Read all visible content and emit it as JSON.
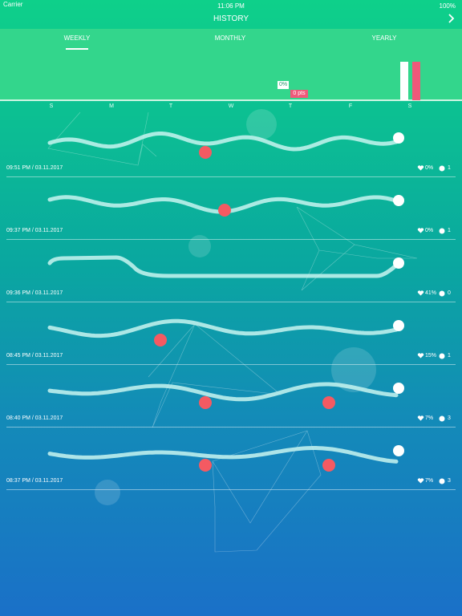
{
  "status": {
    "carrier": "Carrier",
    "time": "11:06 PM",
    "battery": "100%"
  },
  "header": {
    "title": "HISTORY"
  },
  "tabs": [
    "WEEKLY",
    "MONTHLY",
    "YEARLY"
  ],
  "weekly": {
    "tooltip_percent": "0%",
    "tooltip_points": "0 pts",
    "days": [
      "S",
      "M",
      "T",
      "W",
      "T",
      "F",
      "S"
    ]
  },
  "entries": [
    {
      "datetime": "09:51 PM / 03.11.2017",
      "likes": "0%",
      "count": 1
    },
    {
      "datetime": "09:37 PM / 03.11.2017",
      "likes": "0%",
      "count": 1
    },
    {
      "datetime": "09:36 PM / 03.11.2017",
      "likes": "41%",
      "count": 0
    },
    {
      "datetime": "08:45 PM / 03.11.2017",
      "likes": "15%",
      "count": 1
    },
    {
      "datetime": "08:40 PM / 03.11.2017",
      "likes": "7%",
      "count": 3
    },
    {
      "datetime": "08:37 PM / 03.11.2017",
      "likes": "7%",
      "count": 3
    }
  ]
}
